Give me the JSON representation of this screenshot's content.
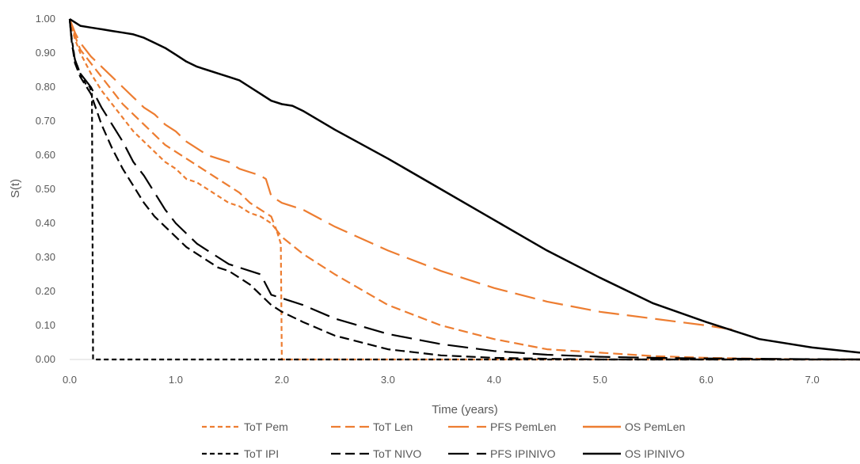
{
  "chart_data": {
    "type": "line",
    "title": "",
    "xlabel": "Time (years)",
    "ylabel": "S(t)",
    "xlim": [
      0,
      7.45
    ],
    "ylim": [
      0,
      1
    ],
    "x_ticks": [
      "0.0",
      "1.0",
      "2.0",
      "3.0",
      "4.0",
      "5.0",
      "6.0",
      "7.0"
    ],
    "y_ticks": [
      "0.00",
      "0.10",
      "0.20",
      "0.30",
      "0.40",
      "0.50",
      "0.60",
      "0.70",
      "0.80",
      "0.90",
      "1.00"
    ],
    "grid": false,
    "legend_position": "bottom",
    "colors": {
      "orange": "#ED7D31",
      "black": "#000000",
      "axis": "#D9D9D9"
    },
    "series": [
      {
        "name": "ToT Pem",
        "color": "#ED7D31",
        "dash": "short",
        "x": [
          0,
          0.05,
          0.1,
          0.2,
          0.3,
          0.4,
          0.5,
          0.6,
          0.7,
          0.8,
          0.9,
          1.0,
          1.1,
          1.2,
          1.3,
          1.4,
          1.5,
          1.6,
          1.7,
          1.8,
          1.9,
          1.95,
          1.99,
          2.0,
          2.5,
          3.0,
          4.0,
          5.0,
          6.0,
          7.0,
          7.45
        ],
        "y": [
          1.0,
          0.94,
          0.9,
          0.84,
          0.79,
          0.75,
          0.71,
          0.67,
          0.64,
          0.61,
          0.58,
          0.56,
          0.53,
          0.52,
          0.5,
          0.48,
          0.46,
          0.45,
          0.43,
          0.42,
          0.4,
          0.38,
          0.34,
          0.0,
          0.0,
          0.0,
          0.0,
          0.0,
          0.0,
          0.0,
          0.0
        ]
      },
      {
        "name": "ToT Len",
        "color": "#ED7D31",
        "dash": "medium",
        "x": [
          0,
          0.05,
          0.1,
          0.2,
          0.3,
          0.4,
          0.5,
          0.6,
          0.7,
          0.8,
          0.9,
          1.0,
          1.1,
          1.2,
          1.3,
          1.4,
          1.5,
          1.6,
          1.7,
          1.8,
          1.9,
          1.95,
          2.0,
          2.2,
          2.5,
          3.0,
          3.5,
          4.0,
          4.5,
          5.0,
          5.5,
          6.0,
          6.5,
          7.0,
          7.45
        ],
        "y": [
          1.0,
          0.95,
          0.91,
          0.87,
          0.83,
          0.79,
          0.75,
          0.72,
          0.69,
          0.66,
          0.63,
          0.61,
          0.59,
          0.57,
          0.55,
          0.53,
          0.51,
          0.49,
          0.46,
          0.44,
          0.42,
          0.38,
          0.36,
          0.31,
          0.25,
          0.16,
          0.1,
          0.06,
          0.03,
          0.02,
          0.01,
          0.005,
          0.002,
          0.0,
          0.0
        ]
      },
      {
        "name": "PFS PemLen",
        "color": "#ED7D31",
        "dash": "long",
        "x": [
          0,
          0.05,
          0.1,
          0.2,
          0.3,
          0.4,
          0.5,
          0.6,
          0.7,
          0.8,
          0.9,
          1.0,
          1.1,
          1.2,
          1.3,
          1.4,
          1.5,
          1.6,
          1.7,
          1.8,
          1.85,
          1.9,
          2.0,
          2.2,
          2.5,
          3.0,
          3.5,
          4.0,
          4.5,
          5.0,
          5.5,
          6.0,
          6.3
        ],
        "y": [
          1.0,
          0.96,
          0.93,
          0.89,
          0.86,
          0.83,
          0.8,
          0.77,
          0.74,
          0.72,
          0.69,
          0.67,
          0.64,
          0.62,
          0.6,
          0.59,
          0.58,
          0.56,
          0.55,
          0.54,
          0.53,
          0.48,
          0.46,
          0.44,
          0.39,
          0.32,
          0.26,
          0.21,
          0.17,
          0.14,
          0.12,
          0.1,
          0.085
        ]
      },
      {
        "name": "OS PemLen",
        "color": "#ED7D31",
        "dash": "solid",
        "x": [],
        "y": []
      },
      {
        "name": "ToT IPI",
        "color": "#000000",
        "dash": "short",
        "x": [
          0,
          0.02,
          0.05,
          0.1,
          0.15,
          0.19,
          0.2,
          0.21,
          0.22,
          7.45
        ],
        "y": [
          1.0,
          0.94,
          0.88,
          0.84,
          0.81,
          0.8,
          0.79,
          0.78,
          0.0,
          0.0
        ]
      },
      {
        "name": "ToT NIVO",
        "color": "#000000",
        "dash": "medium",
        "x": [
          0,
          0.02,
          0.05,
          0.1,
          0.2,
          0.3,
          0.4,
          0.5,
          0.6,
          0.7,
          0.8,
          0.9,
          1.0,
          1.1,
          1.2,
          1.3,
          1.4,
          1.5,
          1.6,
          1.7,
          1.8,
          1.9,
          2.0,
          2.2,
          2.5,
          3.0,
          3.5,
          4.0,
          4.5,
          5.0,
          7.45
        ],
        "y": [
          1.0,
          0.93,
          0.87,
          0.83,
          0.78,
          0.69,
          0.62,
          0.56,
          0.51,
          0.46,
          0.42,
          0.39,
          0.36,
          0.33,
          0.31,
          0.29,
          0.27,
          0.26,
          0.24,
          0.22,
          0.19,
          0.16,
          0.14,
          0.11,
          0.07,
          0.03,
          0.012,
          0.005,
          0.002,
          0.0,
          0.0
        ]
      },
      {
        "name": "PFS IPINIVO",
        "color": "#000000",
        "dash": "long",
        "x": [
          0,
          0.02,
          0.05,
          0.1,
          0.2,
          0.3,
          0.4,
          0.5,
          0.6,
          0.7,
          0.8,
          0.9,
          1.0,
          1.1,
          1.2,
          1.3,
          1.4,
          1.5,
          1.6,
          1.7,
          1.8,
          1.85,
          1.9,
          2.0,
          2.2,
          2.5,
          3.0,
          3.5,
          4.0,
          4.5,
          5.0,
          5.5,
          6.0,
          7.0,
          7.45
        ],
        "y": [
          1.0,
          0.93,
          0.88,
          0.84,
          0.8,
          0.74,
          0.69,
          0.64,
          0.58,
          0.54,
          0.49,
          0.44,
          0.4,
          0.37,
          0.34,
          0.32,
          0.3,
          0.28,
          0.27,
          0.26,
          0.25,
          0.22,
          0.19,
          0.18,
          0.16,
          0.12,
          0.075,
          0.045,
          0.025,
          0.014,
          0.008,
          0.005,
          0.003,
          0.001,
          0.0
        ]
      },
      {
        "name": "OS IPINIVO",
        "color": "#000000",
        "dash": "solid",
        "x": [
          0,
          0.1,
          0.2,
          0.3,
          0.4,
          0.5,
          0.6,
          0.7,
          0.8,
          0.9,
          1.0,
          1.1,
          1.2,
          1.3,
          1.4,
          1.5,
          1.6,
          1.7,
          1.8,
          1.9,
          2.0,
          2.1,
          2.2,
          2.5,
          3.0,
          3.5,
          4.0,
          4.5,
          5.0,
          5.5,
          6.0,
          6.5,
          7.0,
          7.45
        ],
        "y": [
          1.0,
          0.98,
          0.975,
          0.97,
          0.965,
          0.96,
          0.955,
          0.945,
          0.93,
          0.915,
          0.895,
          0.875,
          0.86,
          0.85,
          0.84,
          0.83,
          0.82,
          0.8,
          0.78,
          0.76,
          0.75,
          0.745,
          0.73,
          0.675,
          0.59,
          0.5,
          0.41,
          0.32,
          0.24,
          0.165,
          0.11,
          0.06,
          0.035,
          0.02
        ]
      }
    ]
  }
}
